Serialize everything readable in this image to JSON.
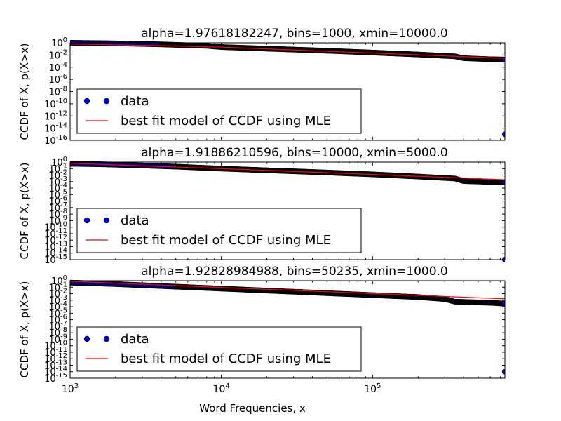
{
  "chart_data": [
    {
      "type": "scatter",
      "title": "alpha=1.97618182247, bins=1000, xmin=10000.0",
      "ylabel": "CCDF of X, p(X>x)",
      "xscale": "log",
      "yscale": "log",
      "xlim": [
        1000,
        750000
      ],
      "ylim": [
        1e-16,
        1
      ],
      "y_tick_exponents": [
        0,
        -2,
        -4,
        -6,
        -8,
        -10,
        -12,
        -14,
        -16
      ],
      "x_tick_exponents": [
        3,
        4,
        5
      ],
      "show_x_tick_labels": false,
      "legend": {
        "position": "lower-left",
        "entries": [
          "data",
          "best fit model of CCDF using MLE"
        ]
      },
      "series": [
        {
          "name": "data",
          "style": "markers",
          "color": "#0000ff",
          "points": [
            [
              1000,
              1.0
            ],
            [
              1100,
              0.98
            ],
            [
              1200,
              0.95
            ],
            [
              1300,
              0.93
            ],
            [
              1450,
              0.9
            ],
            [
              1600,
              0.87
            ],
            [
              1800,
              0.84
            ],
            [
              2000,
              0.8
            ],
            [
              2200,
              0.77
            ],
            [
              2450,
              0.73
            ],
            [
              2700,
              0.7
            ],
            [
              3000,
              0.66
            ],
            [
              4000,
              0.55
            ],
            [
              5000,
              0.46
            ],
            [
              6500,
              0.38
            ],
            [
              8000,
              0.32
            ],
            [
              10000,
              0.2
            ],
            [
              20000,
              0.11
            ],
            [
              50000,
              0.05
            ],
            [
              100000,
              0.025
            ],
            [
              200000,
              0.012
            ],
            [
              350000,
              0.006
            ],
            [
              400000,
              0.003
            ],
            [
              600000,
              0.002
            ],
            [
              750000,
              0.0018
            ],
            [
              750000,
              1e-15
            ]
          ]
        },
        {
          "name": "best fit model of CCDF using MLE",
          "style": "line",
          "color": "#ff0000",
          "points": [
            [
              1000,
              0.68
            ],
            [
              10000,
              0.2
            ],
            [
              100000,
              0.021
            ],
            [
              750000,
              0.0029
            ]
          ]
        }
      ]
    },
    {
      "type": "scatter",
      "title": "alpha=1.91886210596, bins=10000, xmin=5000.0",
      "ylabel": "CCDF of X, p(X>x)",
      "xscale": "log",
      "yscale": "log",
      "xlim": [
        1000,
        750000
      ],
      "ylim": [
        1e-15,
        1
      ],
      "y_tick_exponents": [
        0,
        -1,
        -2,
        -3,
        -4,
        -5,
        -6,
        -7,
        -8,
        -9,
        -10,
        -11,
        -12,
        -13,
        -14,
        -15
      ],
      "x_tick_exponents": [
        3,
        4,
        5
      ],
      "show_x_tick_labels": false,
      "legend": {
        "position": "lower-left",
        "entries": [
          "data",
          "best fit model of CCDF using MLE"
        ]
      },
      "series": [
        {
          "name": "data",
          "style": "markers",
          "color": "#0000ff",
          "points": [
            [
              1000,
              0.55
            ],
            [
              1500,
              0.48
            ],
            [
              2000,
              0.4
            ],
            [
              3000,
              0.3
            ],
            [
              5000,
              0.2
            ],
            [
              10000,
              0.1
            ],
            [
              20000,
              0.055
            ],
            [
              50000,
              0.025
            ],
            [
              100000,
              0.013
            ],
            [
              200000,
              0.006
            ],
            [
              350000,
              0.003
            ],
            [
              400000,
              0.0012
            ],
            [
              600000,
              0.0009
            ],
            [
              750000,
              0.0008
            ],
            [
              750000,
              1e-15
            ]
          ]
        },
        {
          "name": "best fit model of CCDF using MLE",
          "style": "line",
          "color": "#ff0000",
          "points": [
            [
              1000,
              0.65
            ],
            [
              10000,
              0.1
            ],
            [
              100000,
              0.0125
            ],
            [
              750000,
              0.0019
            ]
          ]
        }
      ]
    },
    {
      "type": "scatter",
      "title": "alpha=1.92828984988, bins=50235, xmin=1000.0",
      "ylabel": "CCDF of X, p(X>x)",
      "xlabel": "Word Frequencies, x",
      "xscale": "log",
      "yscale": "log",
      "xlim": [
        1000,
        750000
      ],
      "ylim": [
        1e-15,
        1
      ],
      "y_tick_exponents": [
        0,
        -1,
        -2,
        -3,
        -4,
        -5,
        -6,
        -7,
        -8,
        -9,
        -10,
        -11,
        -12,
        -13,
        -14,
        -15
      ],
      "x_tick_exponents": [
        3,
        4,
        5
      ],
      "show_x_tick_labels": true,
      "legend": {
        "position": "lower-left",
        "entries": [
          "data",
          "best fit model of CCDF using MLE"
        ]
      },
      "series": [
        {
          "name": "data",
          "style": "markers",
          "color": "#0000ff",
          "points": [
            [
              1000,
              0.5
            ],
            [
              1500,
              0.38
            ],
            [
              2000,
              0.3
            ],
            [
              3000,
              0.2
            ],
            [
              5000,
              0.12
            ],
            [
              10000,
              0.06
            ],
            [
              20000,
              0.03
            ],
            [
              50000,
              0.012
            ],
            [
              100000,
              0.006
            ],
            [
              200000,
              0.003
            ],
            [
              300000,
              0.0015
            ],
            [
              350000,
              0.0006
            ],
            [
              600000,
              0.0004
            ],
            [
              750000,
              0.0003
            ],
            [
              750000,
              1e-14
            ]
          ]
        },
        {
          "name": "best fit model of CCDF using MLE",
          "style": "line",
          "color": "#ff0000",
          "points": [
            [
              1000,
              0.8
            ],
            [
              10000,
              0.09
            ],
            [
              100000,
              0.0105
            ],
            [
              750000,
              0.0016
            ]
          ]
        }
      ]
    }
  ]
}
